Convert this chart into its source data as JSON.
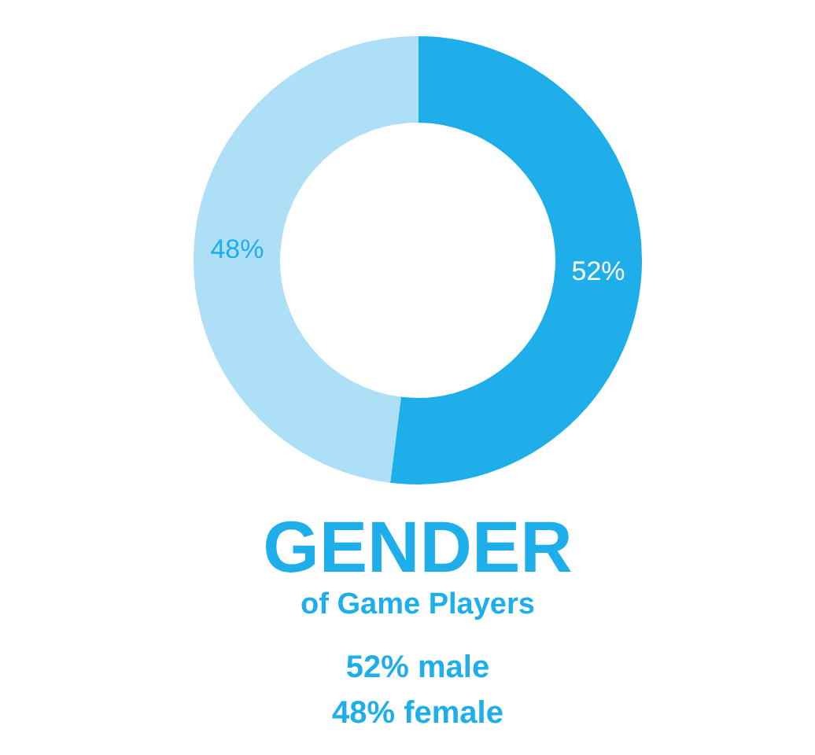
{
  "chart_data": {
    "type": "donut",
    "title": "GENDER",
    "subtitle": "of Game Players",
    "categories": [
      null,
      null
    ],
    "values": [
      52,
      48
    ],
    "colors": [
      "#1eaeea",
      "#addff7"
    ],
    "value_labels": [
      "52%",
      "48%"
    ],
    "annotations": [
      "52% male",
      "48% female"
    ]
  }
}
